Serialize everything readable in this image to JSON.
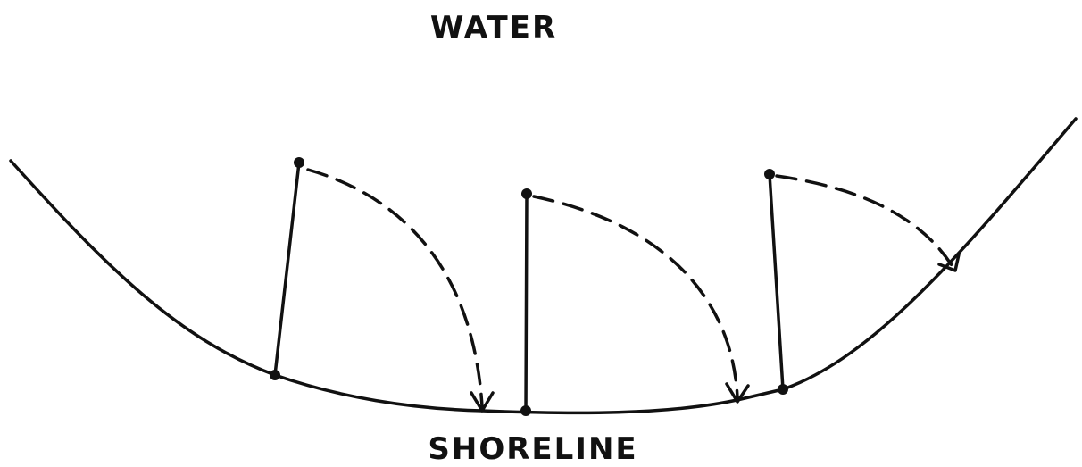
{
  "labels": {
    "top": "WATER",
    "bottom": "SHORELINE"
  }
}
